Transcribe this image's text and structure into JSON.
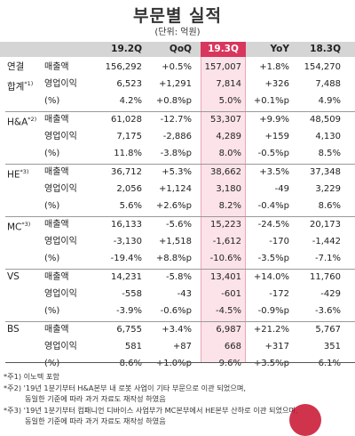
{
  "title": "부문별 실적",
  "unit": "(단위: 억원)",
  "columns": [
    "19.2Q",
    "QoQ",
    "19.3Q",
    "YoY",
    "18.3Q"
  ],
  "segments": [
    {
      "name": "연결",
      "name2": "합계",
      "sup": "*1)",
      "rows": [
        {
          "label": "매출액",
          "values": [
            "156,292",
            "+0.5%",
            "157,007",
            "+1.8%",
            "154,270"
          ]
        },
        {
          "label": "영업이익",
          "values": [
            "6,523",
            "+1,291",
            "7,814",
            "+326",
            "7,488"
          ]
        },
        {
          "label": "(%)",
          "values": [
            "4.2%",
            "+0.8%p",
            "5.0%",
            "+0.1%p",
            "4.9%"
          ]
        }
      ]
    },
    {
      "name": "H&A",
      "name2": "",
      "sup": "*2)",
      "rows": [
        {
          "label": "매출액",
          "values": [
            "61,028",
            "-12.7%",
            "53,307",
            "+9.9%",
            "48,509"
          ]
        },
        {
          "label": "영업이익",
          "values": [
            "7,175",
            "-2,886",
            "4,289",
            "+159",
            "4,130"
          ]
        },
        {
          "label": "(%)",
          "values": [
            "11.8%",
            "-3.8%p",
            "8.0%",
            "-0.5%p",
            "8.5%"
          ]
        }
      ]
    },
    {
      "name": "HE",
      "name2": "",
      "sup": "*3)",
      "rows": [
        {
          "label": "매출액",
          "values": [
            "36,712",
            "+5.3%",
            "38,662",
            "+3.5%",
            "37,348"
          ]
        },
        {
          "label": "영업이익",
          "values": [
            "2,056",
            "+1,124",
            "3,180",
            "-49",
            "3,229"
          ]
        },
        {
          "label": "(%)",
          "values": [
            "5.6%",
            "+2.6%p",
            "8.2%",
            "-0.4%p",
            "8.6%"
          ]
        }
      ]
    },
    {
      "name": "MC",
      "name2": "",
      "sup": "*3)",
      "rows": [
        {
          "label": "매출액",
          "values": [
            "16,133",
            "-5.6%",
            "15,223",
            "-24.5%",
            "20,173"
          ]
        },
        {
          "label": "영업이익",
          "values": [
            "-3,130",
            "+1,518",
            "-1,612",
            "-170",
            "-1,442"
          ]
        },
        {
          "label": "(%)",
          "values": [
            "-19.4%",
            "+8.8%p",
            "-10.6%",
            "-3.5%p",
            "-7.1%"
          ]
        }
      ]
    },
    {
      "name": "VS",
      "name2": "",
      "sup": "",
      "rows": [
        {
          "label": "매출액",
          "values": [
            "14,231",
            "-5.8%",
            "13,401",
            "+14.0%",
            "11,760"
          ]
        },
        {
          "label": "영업이익",
          "values": [
            "-558",
            "-43",
            "-601",
            "-172",
            "-429"
          ]
        },
        {
          "label": "(%)",
          "values": [
            "-3.9%",
            "-0.6%p",
            "-4.5%",
            "-0.9%p",
            "-3.6%"
          ]
        }
      ]
    },
    {
      "name": "BS",
      "name2": "",
      "sup": "",
      "rows": [
        {
          "label": "매출액",
          "values": [
            "6,755",
            "+3.4%",
            "6,987",
            "+21.2%",
            "5,767"
          ]
        },
        {
          "label": "영업이익",
          "values": [
            "581",
            "+87",
            "668",
            "+317",
            "351"
          ]
        },
        {
          "label": "(%)",
          "values": [
            "8.6%",
            "+1.0%p",
            "9.6%",
            "+3.5%p",
            "6.1%"
          ]
        }
      ]
    }
  ],
  "notes": [
    "*주1) 이노텍 포함",
    "*주2) '19년 1분기부터 H&A본부 내 로봇 사업이 기타 부문으로 이관 되었으며,",
    "동일한 기준에 따라 과거 자료도 재작성 하였음",
    "*주3) '19년 1분기부터 컴패니언 디바이스 사업부가 MC본부에서 HE본부 산하로 이관 되었으며,",
    "동일한 기준에 따라 과거 자료도 재작성 하였음"
  ]
}
